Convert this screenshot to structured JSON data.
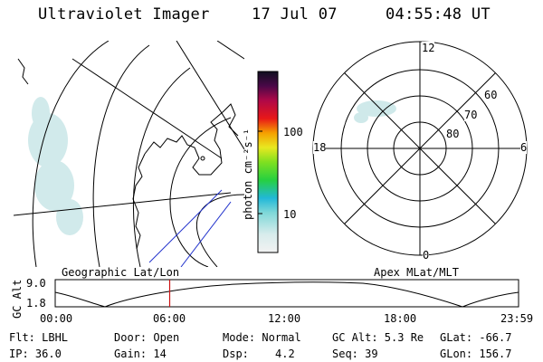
{
  "header": {
    "title": "Ultraviolet Imager",
    "date": "17 Jul 07",
    "time": "04:55:48 UT"
  },
  "colorbar": {
    "unit_label": "photon cm⁻²s⁻¹",
    "ticks": [
      "100",
      "10"
    ]
  },
  "polar_plot": {
    "mlt_labels": {
      "top": "12",
      "left": "18",
      "right": "6",
      "bottom": "0"
    },
    "lat_labels": [
      "60",
      "70",
      "80"
    ]
  },
  "alt_panel": {
    "ylabel": "GC Alt",
    "y_ticks": [
      "9.0",
      "1.8"
    ],
    "left_caption": "Geographic Lat/Lon",
    "right_caption": "Apex MLat/MLT",
    "x_ticks": [
      "00:00",
      "06:00",
      "12:00",
      "18:00",
      "23:59"
    ],
    "marker_fraction": 0.247
  },
  "status": {
    "flt": "Flt: LBHL",
    "ip": "IP: 36.0",
    "door": "Door: Open",
    "gain": "Gain: 14",
    "mode": "Mode: Normal",
    "dsp_label": "Dsp:",
    "dsp_value": "4.2",
    "gc_alt": "GC Alt: 5.3 Re",
    "seq": "Seq: 39",
    "glat": "GLat: -66.7",
    "glon": "GLon: 156.7"
  }
}
